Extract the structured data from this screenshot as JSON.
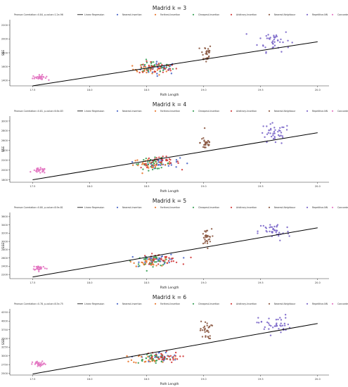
{
  "chart_data": [
    {
      "type": "scatter",
      "title": "Madrid k = 3",
      "xlabel": "Path Length",
      "ylabel": "SSE",
      "xlim": [
        17.3,
        20.1
      ],
      "ylim": [
        1320,
        2280
      ],
      "xticks": [
        17.5,
        18.0,
        18.5,
        19.0,
        19.5,
        20.0
      ],
      "xtick_labels": [
        "17.5",
        "18.0",
        "18.5",
        "19.0",
        "19.5",
        "20.0"
      ],
      "yticks": [
        1400,
        1600,
        1800,
        2000,
        2200
      ],
      "legend": [
        "Pearson Correlation=0.84, p-value=1.2e-96",
        "Linear Regression",
        "Nearest-Insertion",
        "Farthest-Insertion",
        "Cheapest-Insertion",
        "Arbitrary-Insertion",
        "Nearest-Neighbour",
        "Repetitive-NN",
        "Concorde"
      ],
      "regression": [
        [
          17.5,
          1320
        ],
        [
          20.0,
          1960
        ]
      ],
      "clusters": [
        {
          "name": "Nearest-Insertion",
          "color": "#4a66c8",
          "cx": 18.62,
          "cy": 1580,
          "sx": 0.17,
          "sy": 45,
          "n": 30
        },
        {
          "name": "Farthest-Insertion",
          "color": "#e8762c",
          "cx": 18.55,
          "cy": 1560,
          "sx": 0.17,
          "sy": 40,
          "n": 30
        },
        {
          "name": "Cheapest-Insertion",
          "color": "#3aa057",
          "cx": 18.55,
          "cy": 1590,
          "sx": 0.17,
          "sy": 45,
          "n": 30
        },
        {
          "name": "Arbitrary-Insertion",
          "color": "#d23a3a",
          "cx": 18.6,
          "cy": 1580,
          "sx": 0.17,
          "sy": 45,
          "n": 30
        },
        {
          "name": "Nearest-Neighbour",
          "color": "#8c5a44",
          "cx": 19.02,
          "cy": 1790,
          "sx": 0.05,
          "sy": 70,
          "n": 30
        },
        {
          "name": "Repetitive-NN",
          "color": "#7a66c9",
          "cx": 19.62,
          "cy": 1980,
          "sx": 0.14,
          "sy": 80,
          "n": 40
        },
        {
          "name": "Concorde",
          "color": "#e377c2",
          "cx": 17.56,
          "cy": 1440,
          "sx": 0.06,
          "sy": 18,
          "n": 30
        }
      ]
    },
    {
      "type": "scatter",
      "title": "Madrid k = 4",
      "xlabel": "Path Length",
      "ylabel": "SSE",
      "xlim": [
        17.3,
        20.1
      ],
      "ylim": [
        1750,
        3100
      ],
      "xticks": [
        17.5,
        18.0,
        18.5,
        19.0,
        19.5,
        20.0
      ],
      "xtick_labels": [
        "17.5",
        "18.0",
        "18.5",
        "19.0",
        "19.5",
        "20.0"
      ],
      "yticks": [
        1800,
        2000,
        2200,
        2400,
        2600,
        2800,
        3000
      ],
      "legend": [
        "Pearson Correlation=0.81, p-value=6.6e-83",
        "Linear Regression",
        "Nearest-Insertion",
        "Farthest-Insertion",
        "Cheapest-Insertion",
        "Arbitrary-Insertion",
        "Nearest-Neighbour",
        "Repetitive-NN",
        "Concorde"
      ],
      "regression": [
        [
          17.5,
          1800
        ],
        [
          20.0,
          2760
        ]
      ],
      "clusters": [
        {
          "name": "Nearest-Insertion",
          "color": "#4a66c8",
          "cx": 18.62,
          "cy": 2150,
          "sx": 0.17,
          "sy": 55,
          "n": 30
        },
        {
          "name": "Farthest-Insertion",
          "color": "#e8762c",
          "cx": 18.55,
          "cy": 2120,
          "sx": 0.17,
          "sy": 55,
          "n": 30
        },
        {
          "name": "Cheapest-Insertion",
          "color": "#3aa057",
          "cx": 18.55,
          "cy": 2130,
          "sx": 0.17,
          "sy": 55,
          "n": 30
        },
        {
          "name": "Arbitrary-Insertion",
          "color": "#d23a3a",
          "cx": 18.62,
          "cy": 2160,
          "sx": 0.17,
          "sy": 60,
          "n": 30
        },
        {
          "name": "Nearest-Neighbour",
          "color": "#8c5a44",
          "cx": 19.02,
          "cy": 2560,
          "sx": 0.05,
          "sy": 90,
          "n": 30
        },
        {
          "name": "Repetitive-NN",
          "color": "#7a66c9",
          "cx": 19.62,
          "cy": 2730,
          "sx": 0.14,
          "sy": 110,
          "n": 40
        },
        {
          "name": "Concorde",
          "color": "#e377c2",
          "cx": 17.56,
          "cy": 1985,
          "sx": 0.06,
          "sy": 25,
          "n": 30
        }
      ]
    },
    {
      "type": "scatter",
      "title": "Madrid k = 5",
      "xlabel": "Path Length",
      "ylabel": "SSE",
      "xlim": [
        17.3,
        20.1
      ],
      "ylim": [
        2100,
        3700
      ],
      "xticks": [
        17.5,
        18.0,
        18.5,
        19.0,
        19.5,
        20.0
      ],
      "xtick_labels": [
        "17.5",
        "18.0",
        "18.5",
        "19.0",
        "19.5",
        "20.0"
      ],
      "yticks": [
        2200,
        2400,
        2600,
        2800,
        3000,
        3200,
        3400,
        3600
      ],
      "legend": [
        "Pearson Correlation=0.80, p-value=8.9e-81",
        "Linear Regression",
        "Nearest-Insertion",
        "Farthest-Insertion",
        "Cheapest-Insertion",
        "Arbitrary-Insertion",
        "Nearest-Neighbour",
        "Repetitive-NN",
        "Concorde"
      ],
      "regression": [
        [
          17.5,
          2140
        ],
        [
          20.0,
          3330
        ]
      ],
      "clusters": [
        {
          "name": "Nearest-Insertion",
          "color": "#4a66c8",
          "cx": 18.62,
          "cy": 2560,
          "sx": 0.17,
          "sy": 65,
          "n": 30
        },
        {
          "name": "Farthest-Insertion",
          "color": "#e8762c",
          "cx": 18.55,
          "cy": 2520,
          "sx": 0.17,
          "sy": 60,
          "n": 30
        },
        {
          "name": "Cheapest-Insertion",
          "color": "#3aa057",
          "cx": 18.55,
          "cy": 2530,
          "sx": 0.17,
          "sy": 60,
          "n": 30
        },
        {
          "name": "Arbitrary-Insertion",
          "color": "#d23a3a",
          "cx": 18.62,
          "cy": 2560,
          "sx": 0.17,
          "sy": 65,
          "n": 30
        },
        {
          "name": "Nearest-Neighbour",
          "color": "#8c5a44",
          "cx": 19.02,
          "cy": 3080,
          "sx": 0.05,
          "sy": 110,
          "n": 30
        },
        {
          "name": "Repetitive-NN",
          "color": "#7a66c9",
          "cx": 19.62,
          "cy": 3240,
          "sx": 0.14,
          "sy": 120,
          "n": 40
        },
        {
          "name": "Concorde",
          "color": "#e377c2",
          "cx": 17.56,
          "cy": 2360,
          "sx": 0.06,
          "sy": 30,
          "n": 30
        }
      ]
    },
    {
      "type": "scatter",
      "title": "Madrid k = 6",
      "xlabel": "Path Length",
      "ylabel": "SSE",
      "xlim": [
        17.3,
        20.1
      ],
      "ylim": [
        2450,
        4350
      ],
      "xticks": [
        17.5,
        18.0,
        18.5,
        19.0,
        19.5,
        20.0
      ],
      "xtick_labels": [
        "17.5",
        "18.0",
        "18.5",
        "19.0",
        "19.5",
        "20.0"
      ],
      "yticks": [
        2500,
        2750,
        3000,
        3250,
        3500,
        3750,
        4000,
        4250
      ],
      "legend": [
        "Pearson Correlation=0.78, p-value=8.5e-75",
        "Linear Regression",
        "Nearest-Insertion",
        "Farthest-Insertion",
        "Cheapest-Insertion",
        "Arbitrary-Insertion",
        "Nearest-Neighbour",
        "Repetitive-NN",
        "Concorde"
      ],
      "regression": [
        [
          17.5,
          2480
        ],
        [
          20.0,
          3930
        ]
      ],
      "clusters": [
        {
          "name": "Nearest-Insertion",
          "color": "#4a66c8",
          "cx": 18.62,
          "cy": 2960,
          "sx": 0.17,
          "sy": 75,
          "n": 30
        },
        {
          "name": "Farthest-Insertion",
          "color": "#e8762c",
          "cx": 18.55,
          "cy": 2920,
          "sx": 0.17,
          "sy": 70,
          "n": 30
        },
        {
          "name": "Cheapest-Insertion",
          "color": "#3aa057",
          "cx": 18.55,
          "cy": 2940,
          "sx": 0.17,
          "sy": 75,
          "n": 30
        },
        {
          "name": "Arbitrary-Insertion",
          "color": "#d23a3a",
          "cx": 18.62,
          "cy": 2960,
          "sx": 0.17,
          "sy": 75,
          "n": 30
        },
        {
          "name": "Nearest-Neighbour",
          "color": "#8c5a44",
          "cx": 19.02,
          "cy": 3740,
          "sx": 0.05,
          "sy": 130,
          "n": 30
        },
        {
          "name": "Repetitive-NN",
          "color": "#7a66c9",
          "cx": 19.62,
          "cy": 3900,
          "sx": 0.14,
          "sy": 140,
          "n": 40
        },
        {
          "name": "Concorde",
          "color": "#e377c2",
          "cx": 17.56,
          "cy": 2760,
          "sx": 0.06,
          "sy": 40,
          "n": 30
        }
      ]
    }
  ]
}
